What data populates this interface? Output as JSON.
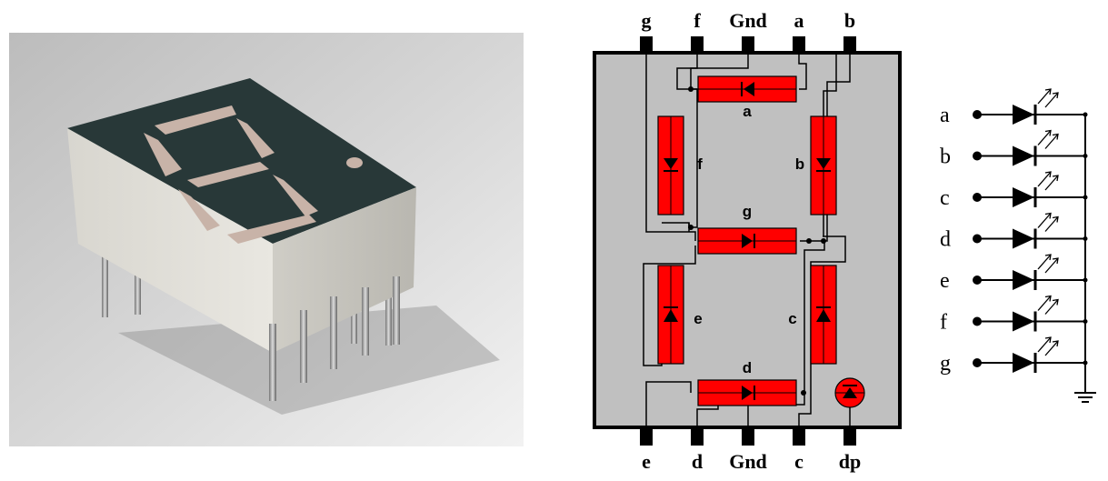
{
  "pinout": {
    "top_pins": [
      "g",
      "f",
      "Gnd",
      "a",
      "b"
    ],
    "bottom_pins": [
      "e",
      "d",
      "Gnd",
      "c",
      "dp"
    ],
    "segment_labels": [
      "a",
      "b",
      "c",
      "d",
      "e",
      "f",
      "g"
    ],
    "segment_color": "#ff0000",
    "body_color": "#c0c0c0"
  },
  "schematic": {
    "inputs": [
      "a",
      "b",
      "c",
      "d",
      "e",
      "f",
      "g"
    ]
  },
  "photo": {
    "subject": "seven-segment-led-display-photo"
  }
}
